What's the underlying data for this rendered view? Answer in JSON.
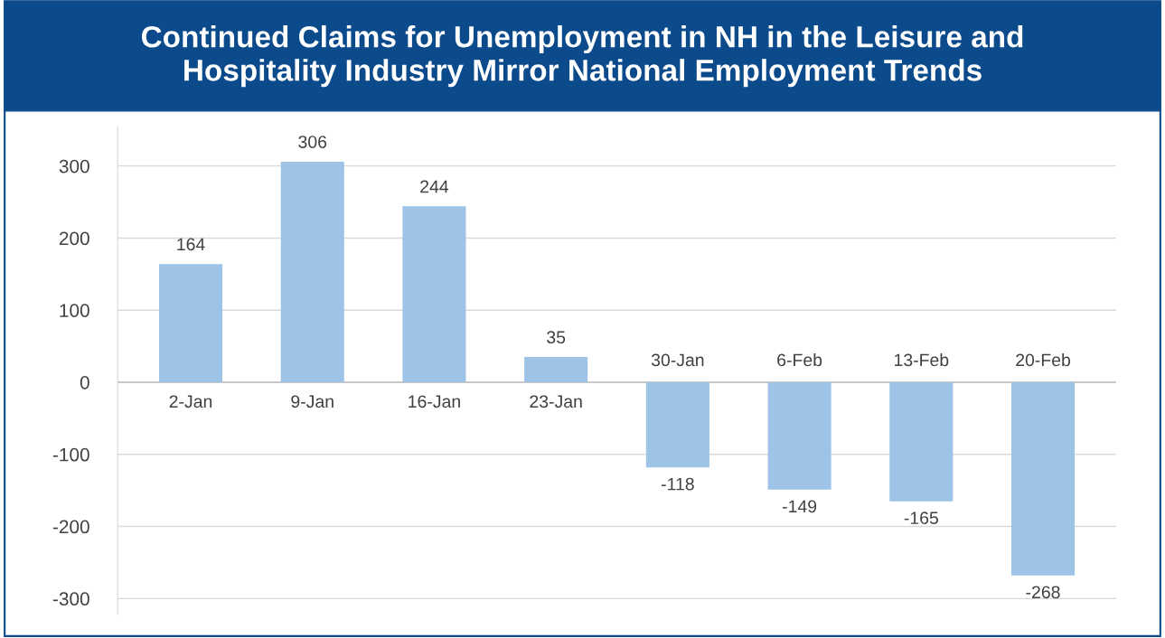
{
  "chart_data": {
    "type": "bar",
    "title": "Continued Claims for Unemployment in NH in the Leisure and\nHospitality Industry Mirror National Employment Trends",
    "categories": [
      "2-Jan",
      "9-Jan",
      "16-Jan",
      "23-Jan",
      "30-Jan",
      "6-Feb",
      "13-Feb",
      "20-Feb"
    ],
    "values": [
      164,
      306,
      244,
      35,
      -118,
      -149,
      -165,
      -268
    ],
    "color": "#9dc3e6",
    "data_labels": true,
    "grid": "y",
    "ylim": [
      -322,
      355
    ],
    "yticks": [
      -300,
      -200,
      -100,
      0,
      100,
      200,
      300
    ]
  }
}
